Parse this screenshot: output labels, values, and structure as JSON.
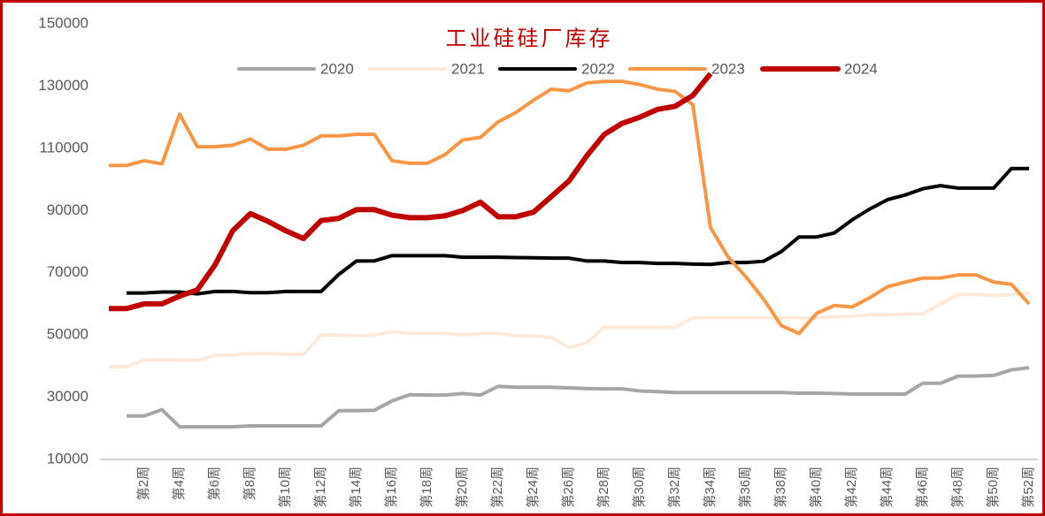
{
  "chart_data": {
    "type": "line",
    "title": "工业硅硅厂库存",
    "categories": [
      null,
      null,
      "第2周",
      null,
      "第4周",
      null,
      "第6周",
      null,
      "第8周",
      null,
      "第10周",
      null,
      "第12周",
      null,
      "第14周",
      null,
      "第16周",
      null,
      "第18周",
      null,
      "第20周",
      null,
      "第22周",
      null,
      "第24周",
      null,
      "第26周",
      null,
      "第28周",
      null,
      "第30周",
      null,
      "第32周",
      null,
      "第34周",
      null,
      "第36周",
      null,
      "第38周",
      null,
      "第40周",
      null,
      "第42周",
      null,
      "第44周",
      null,
      "第46周",
      null,
      "第48周",
      null,
      "第50周",
      null,
      "第52周"
    ],
    "series": [
      {
        "name": "2020",
        "color": "#a6a6a6",
        "width": 4,
        "values": [
          null,
          24000,
          24000,
          26000,
          20500,
          20500,
          20500,
          20500,
          20800,
          20800,
          20800,
          20800,
          20800,
          25700,
          25700,
          25800,
          28800,
          30800,
          30700,
          30700,
          31200,
          30700,
          33500,
          33200,
          33200,
          33200,
          33000,
          32800,
          32700,
          32700,
          32000,
          31800,
          31500,
          31500,
          31500,
          31500,
          31500,
          31500,
          31500,
          31300,
          31300,
          31200,
          31000,
          31000,
          31000,
          31000,
          34500,
          34500,
          36800,
          36800,
          37000,
          38800,
          39500
        ]
      },
      {
        "name": "2021",
        "color": "#fde9d9",
        "width": 4,
        "values": [
          39800,
          39800,
          42000,
          42000,
          42000,
          41800,
          43500,
          43500,
          44000,
          44000,
          43800,
          43800,
          50000,
          50000,
          49800,
          50000,
          51000,
          50500,
          50500,
          50500,
          50000,
          50500,
          50500,
          49800,
          49700,
          49200,
          46000,
          47500,
          52500,
          52500,
          52500,
          52500,
          52500,
          55500,
          55500,
          55500,
          55500,
          55500,
          55500,
          55500,
          55500,
          55800,
          56000,
          56500,
          56500,
          56800,
          56800,
          60000,
          63000,
          63000,
          62700,
          63000,
          63500
        ]
      },
      {
        "name": "2022",
        "color": "#000000",
        "width": 4,
        "values": [
          null,
          63500,
          63500,
          63800,
          63800,
          63200,
          64000,
          64000,
          63600,
          63600,
          64000,
          64000,
          64000,
          69500,
          73800,
          73800,
          75500,
          75500,
          75500,
          75500,
          75000,
          75000,
          75000,
          74900,
          74800,
          74700,
          74700,
          73800,
          73800,
          73300,
          73300,
          73000,
          73000,
          72800,
          72700,
          73300,
          73300,
          73700,
          76800,
          81500,
          81500,
          82800,
          87000,
          90500,
          93500,
          95000,
          97000,
          98000,
          97200,
          97200,
          97200,
          103500,
          103500
        ]
      },
      {
        "name": "2023",
        "color": "#f79646",
        "width": 4,
        "values": [
          104500,
          104500,
          106000,
          105000,
          121000,
          110500,
          110500,
          111000,
          113000,
          109700,
          109700,
          111000,
          114000,
          114000,
          114500,
          114500,
          106000,
          105200,
          105200,
          108000,
          112700,
          113500,
          118500,
          121500,
          125500,
          129000,
          128500,
          131000,
          131500,
          131500,
          130500,
          129000,
          128300,
          124000,
          84500,
          75000,
          68700,
          61500,
          53000,
          50500,
          57000,
          59500,
          59000,
          62000,
          65500,
          67000,
          68300,
          68300,
          69300,
          69300,
          67000,
          66300,
          60000
        ]
      },
      {
        "name": "2024",
        "color": "#c00000",
        "width": 6,
        "values": [
          58500,
          58500,
          60000,
          60000,
          62500,
          64500,
          72500,
          83500,
          89000,
          86500,
          83500,
          81000,
          86800,
          87500,
          90300,
          90300,
          88500,
          87700,
          87700,
          88300,
          90000,
          92700,
          88000,
          88000,
          89500,
          94500,
          99500,
          107500,
          114500,
          118000,
          120000,
          122500,
          123500,
          127000,
          134000,
          null,
          null,
          null,
          null,
          null,
          null,
          null,
          null,
          null,
          null,
          null,
          null,
          null,
          null,
          null,
          null,
          null,
          null
        ]
      }
    ],
    "ylim": [
      10000,
      150000
    ],
    "yticks": [
      10000,
      30000,
      50000,
      70000,
      90000,
      110000,
      130000,
      150000
    ],
    "legend": "top"
  }
}
